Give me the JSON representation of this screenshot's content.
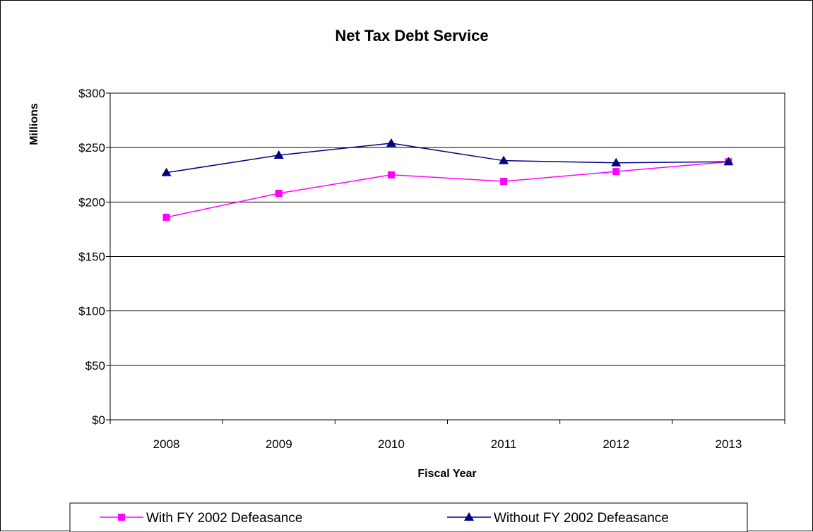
{
  "chart_data": {
    "type": "line",
    "title": "Net Tax Debt Service",
    "xlabel": "Fiscal Year",
    "ylabel": "Millions",
    "categories": [
      "2008",
      "2009",
      "2010",
      "2011",
      "2012",
      "2013"
    ],
    "ylim": [
      0,
      300
    ],
    "yticks": [
      0,
      50,
      100,
      150,
      200,
      250,
      300
    ],
    "ytick_labels": [
      "$0",
      "$50",
      "$100",
      "$150",
      "$200",
      "$250",
      "$300"
    ],
    "grid": true,
    "legend_position": "bottom",
    "series": [
      {
        "name": "With FY 2002 Defeasance",
        "values": [
          186,
          208,
          225,
          219,
          228,
          237
        ],
        "color": "#ff00ff",
        "marker": "square"
      },
      {
        "name": "Without FY 2002 Defeasance",
        "values": [
          227,
          243,
          254,
          238,
          236,
          237
        ],
        "color": "#000080",
        "marker": "triangle"
      }
    ]
  }
}
